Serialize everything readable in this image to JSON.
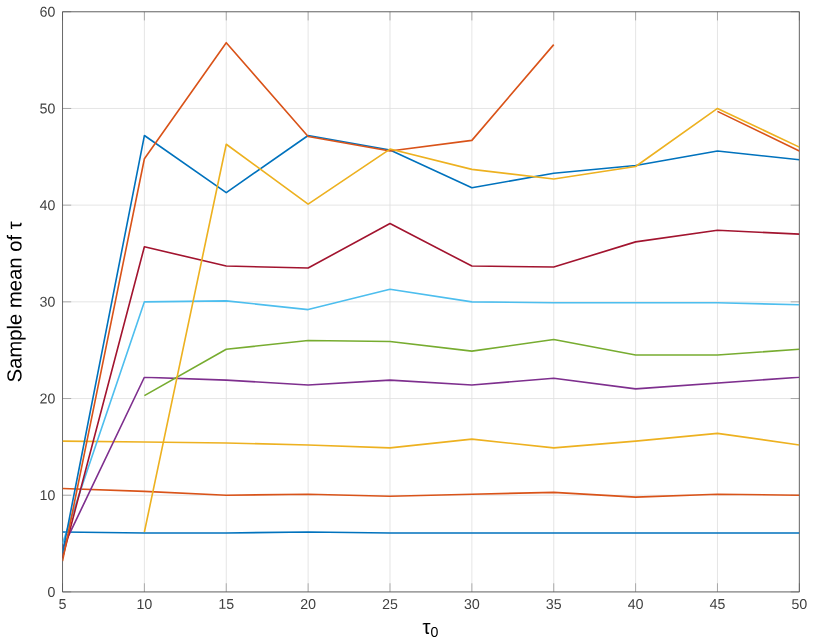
{
  "chart_data": {
    "type": "line",
    "xlabel": "τ$_{0}$",
    "ylabel": "Sample mean of τ",
    "x": [
      5,
      10,
      15,
      20,
      25,
      30,
      35,
      40,
      45,
      50
    ],
    "xlim": [
      5,
      50
    ],
    "ylim": [
      0,
      60
    ],
    "xticks": [
      5,
      10,
      15,
      20,
      25,
      30,
      35,
      40,
      45,
      50
    ],
    "yticks": [
      0,
      10,
      20,
      30,
      40,
      50,
      60
    ],
    "grid": true,
    "marker": "none",
    "line_style": "solid",
    "series": [
      {
        "color": "#0072bd",
        "values": [
          6.2,
          6.1,
          6.1,
          6.2,
          6.1,
          6.1,
          6.1,
          6.1,
          6.1,
          6.1
        ]
      },
      {
        "color": "#d95319",
        "values": [
          10.7,
          10.4,
          10.0,
          10.1,
          9.9,
          10.1,
          10.3,
          9.8,
          10.1,
          10.0
        ]
      },
      {
        "color": "#edb120",
        "values": [
          15.6,
          15.5,
          15.4,
          15.2,
          14.9,
          15.8,
          14.9,
          15.6,
          16.4,
          15.2
        ]
      },
      {
        "color": "#7e2f8e",
        "values": [
          4.5,
          22.2,
          21.9,
          21.4,
          21.9,
          21.4,
          22.1,
          21.0,
          21.6,
          22.2
        ]
      },
      {
        "color": "#77ac30",
        "values": [
          null,
          20.3,
          25.1,
          26.0,
          25.9,
          24.9,
          26.1,
          24.5,
          24.5,
          25.1
        ]
      },
      {
        "color": "#4dbeee",
        "values": [
          5.0,
          30.0,
          30.1,
          29.2,
          31.3,
          30.0,
          29.9,
          29.9,
          29.9,
          29.7
        ]
      },
      {
        "color": "#a2142f",
        "values": [
          3.5,
          35.7,
          33.7,
          33.5,
          38.1,
          33.7,
          33.6,
          36.2,
          37.4,
          37.0
        ]
      },
      {
        "color": "#0072bd",
        "values": [
          4.0,
          47.2,
          41.3,
          47.2,
          45.7,
          41.8,
          43.3,
          44.1,
          45.6,
          44.7
        ]
      },
      {
        "color": "#d95319",
        "values": [
          3.2,
          44.8,
          56.8,
          47.1,
          45.6,
          46.7,
          56.6,
          null,
          49.7,
          45.6
        ]
      },
      {
        "color": "#edb120",
        "values": [
          null,
          6.2,
          46.3,
          40.1,
          45.8,
          43.7,
          42.7,
          44.0,
          50.0,
          46.0
        ]
      }
    ]
  }
}
